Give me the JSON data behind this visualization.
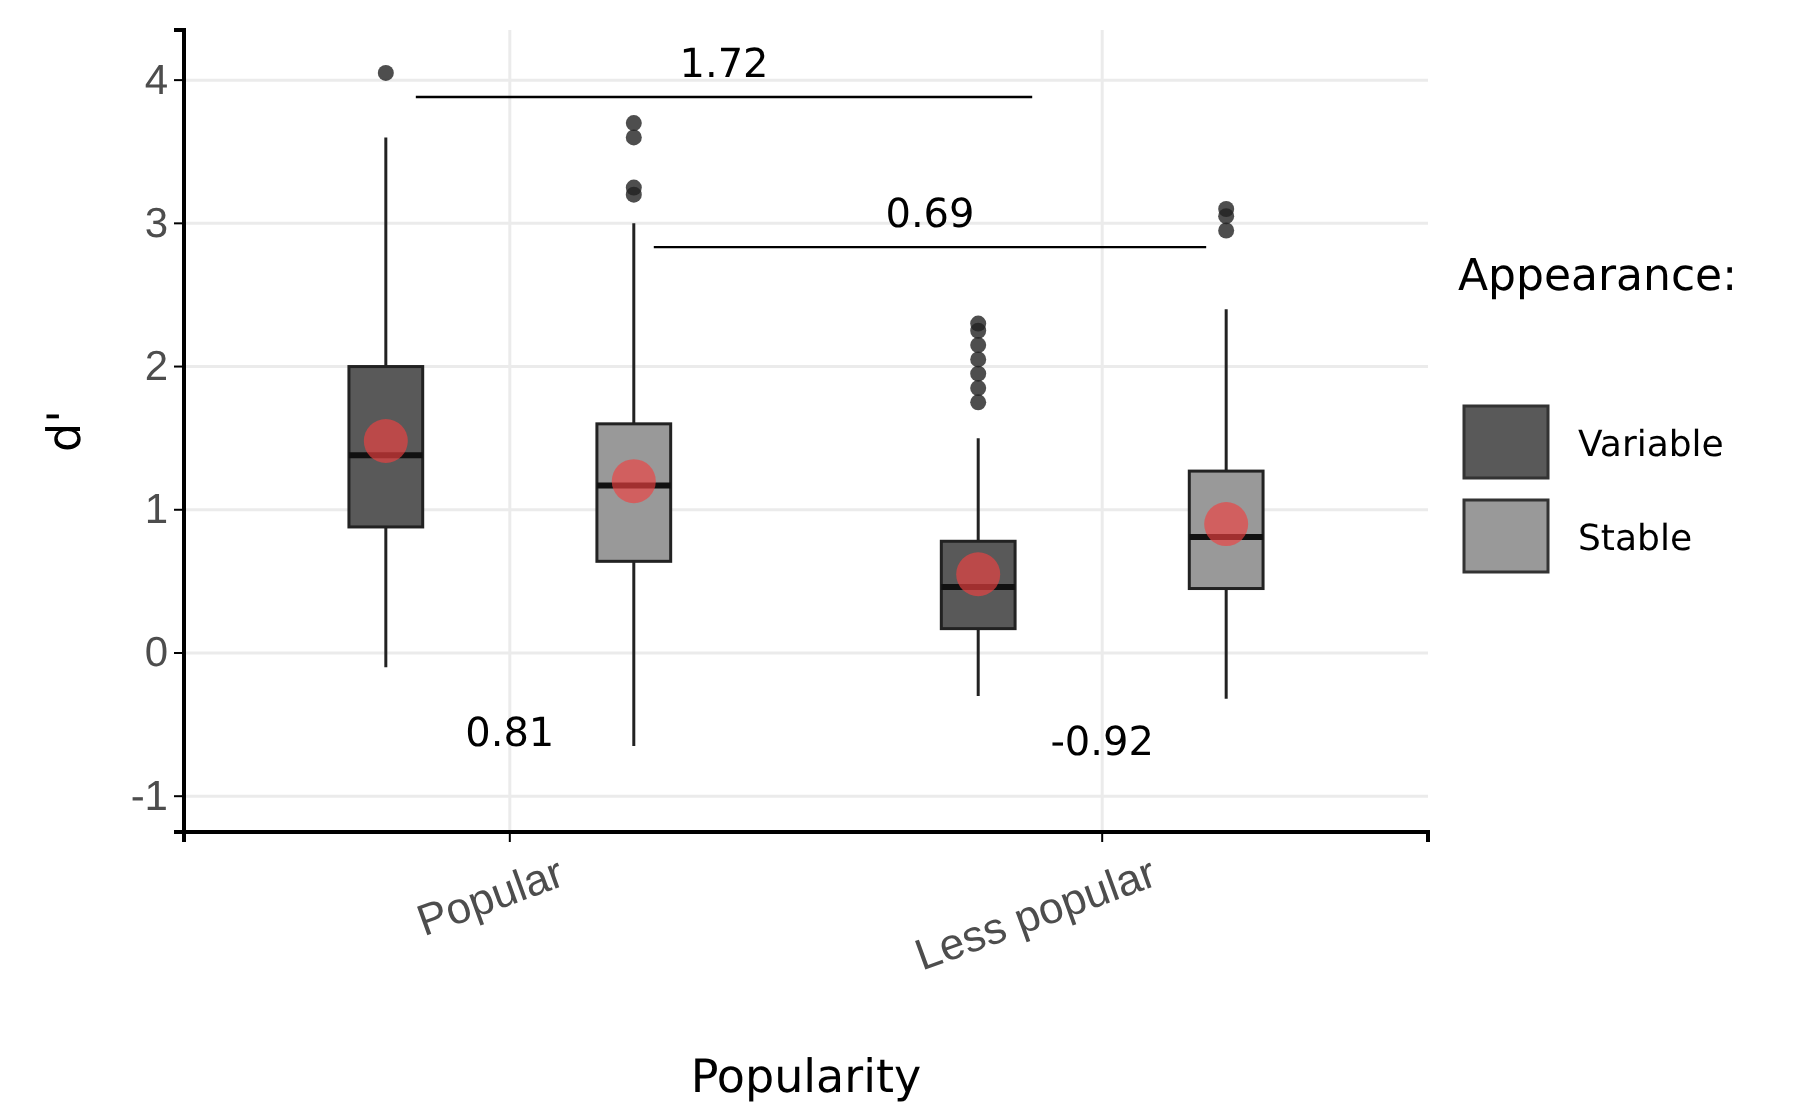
{
  "chart_data": {
    "type": "box",
    "xlabel": "Popularity",
    "ylabel": "d'",
    "legend_title": "Appearance:",
    "categories": [
      "Popular",
      "Less popular"
    ],
    "series": [
      {
        "name": "Variable",
        "color": "#595959",
        "boxes": [
          {
            "low": -0.1,
            "q1": 0.88,
            "median": 1.38,
            "q3": 2.0,
            "high": 3.6,
            "mean": 1.48,
            "outliers": [
              4.05
            ]
          },
          {
            "low": -0.3,
            "q1": 0.17,
            "median": 0.46,
            "q3": 0.78,
            "high": 1.5,
            "mean": 0.55,
            "outliers": [
              1.75,
              1.85,
              1.95,
              2.05,
              2.15,
              2.25,
              2.3
            ]
          }
        ]
      },
      {
        "name": "Stable",
        "color": "#999999",
        "boxes": [
          {
            "low": -0.65,
            "q1": 0.64,
            "median": 1.17,
            "q3": 1.6,
            "high": 3.0,
            "mean": 1.2,
            "outliers": [
              3.2,
              3.25,
              3.6,
              3.7
            ]
          },
          {
            "low": -0.32,
            "q1": 0.45,
            "median": 0.81,
            "q3": 1.27,
            "high": 2.4,
            "mean": 0.9,
            "outliers": [
              2.95,
              3.05,
              3.1
            ]
          }
        ]
      }
    ],
    "ylim": [
      -1.25,
      4.35
    ],
    "yticks": [
      -1,
      0,
      1,
      2,
      3,
      4
    ],
    "grid": true,
    "legend": "right",
    "annotations": [
      "1.72",
      "0.69",
      "0.81",
      "-0.92"
    ]
  }
}
